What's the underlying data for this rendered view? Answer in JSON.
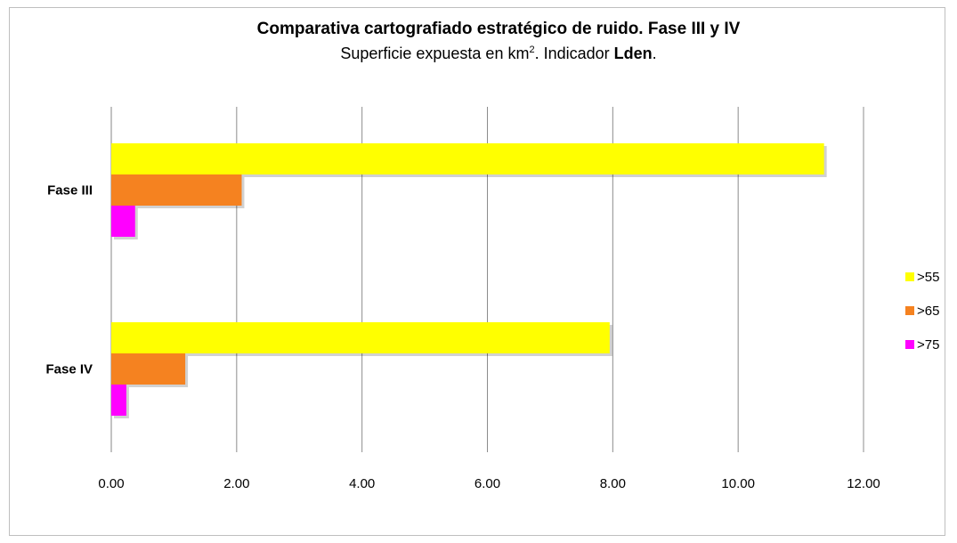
{
  "chart_data": {
    "type": "bar",
    "orientation": "horizontal",
    "title": "Comparativa  cartografiado estratégico de ruido. Fase III y IV",
    "subtitle_parts": {
      "text1": "Superficie expuesta en km",
      "sup": "2",
      "text2": ".  Indicador ",
      "bold": "Lden",
      "text3": "."
    },
    "categories": [
      "Fase III",
      "Fase IV"
    ],
    "series": [
      {
        "name": ">55",
        "color": "#ffff00",
        "values": [
          11.37,
          7.95
        ]
      },
      {
        "name": ">65",
        "color": "#f58220",
        "values": [
          2.08,
          1.18
        ]
      },
      {
        "name": ">75",
        "color": "#ff00ff",
        "values": [
          0.38,
          0.24
        ]
      }
    ],
    "xlim": [
      0,
      12
    ],
    "xticks": [
      "0.00",
      "2.00",
      "4.00",
      "6.00",
      "8.00",
      "10.00",
      "12.00"
    ],
    "grid": true,
    "legend": "right"
  }
}
